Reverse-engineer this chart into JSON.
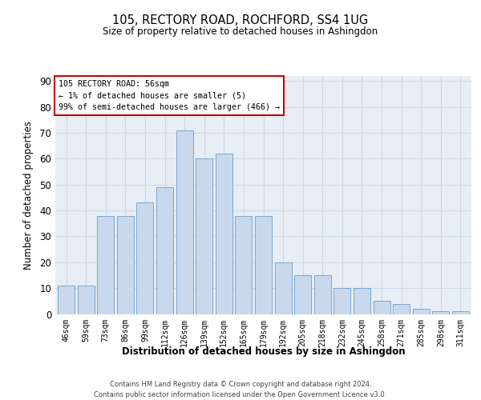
{
  "title": "105, RECTORY ROAD, ROCHFORD, SS4 1UG",
  "subtitle": "Size of property relative to detached houses in Ashingdon",
  "xlabel": "Distribution of detached houses by size in Ashingdon",
  "ylabel": "Number of detached properties",
  "categories": [
    "46sqm",
    "59sqm",
    "73sqm",
    "86sqm",
    "99sqm",
    "112sqm",
    "126sqm",
    "139sqm",
    "152sqm",
    "165sqm",
    "179sqm",
    "192sqm",
    "205sqm",
    "218sqm",
    "232sqm",
    "245sqm",
    "258sqm",
    "271sqm",
    "285sqm",
    "298sqm",
    "311sqm"
  ],
  "values": [
    11,
    11,
    38,
    38,
    43,
    49,
    71,
    60,
    62,
    38,
    38,
    20,
    15,
    15,
    10,
    10,
    5,
    4,
    2,
    1,
    1
  ],
  "bar_color": "#c9d9ed",
  "bar_edge_color": "#7aa5cc",
  "annotation_title": "105 RECTORY ROAD: 56sqm",
  "annotation_line1": "← 1% of detached houses are smaller (5)",
  "annotation_line2": "99% of semi-detached houses are larger (466) →",
  "annotation_box_edge": "#cc0000",
  "ylim": [
    0,
    92
  ],
  "yticks": [
    0,
    10,
    20,
    30,
    40,
    50,
    60,
    70,
    80,
    90
  ],
  "grid_color": "#cdd8e5",
  "background_color": "#e8eef5",
  "footer1": "Contains HM Land Registry data © Crown copyright and database right 2024.",
  "footer2": "Contains public sector information licensed under the Open Government Licence v3.0."
}
